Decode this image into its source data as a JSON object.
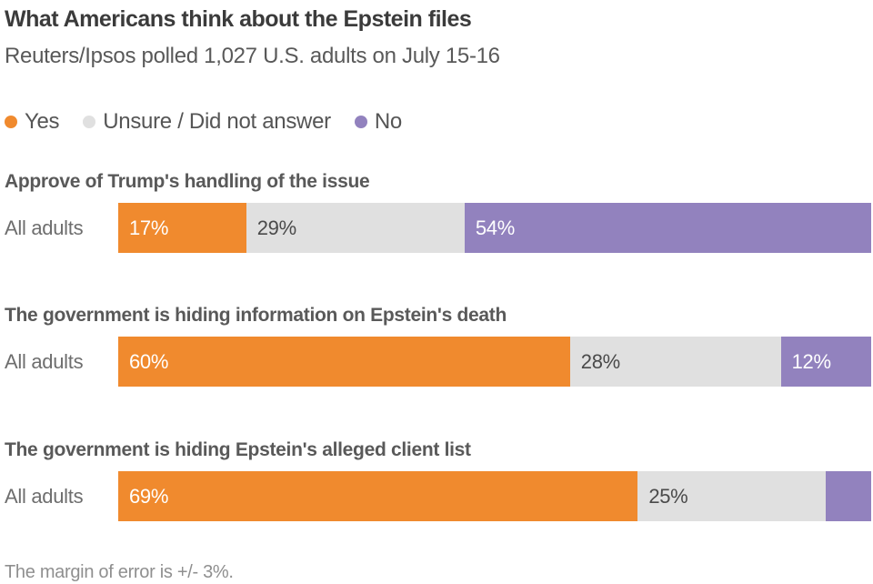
{
  "header": {
    "title": "What Americans think about the Epstein files",
    "subtitle": "Reuters/Ipsos polled 1,027 U.S. adults on July 15-16"
  },
  "legend": [
    {
      "label": "Yes",
      "color": "#F08A2E"
    },
    {
      "label": "Unsure / Did not answer",
      "color": "#E0E0E0"
    },
    {
      "label": "No",
      "color": "#9282BE"
    }
  ],
  "chart_data": {
    "type": "bar",
    "stacked": true,
    "orientation": "horizontal",
    "unit": "%",
    "series_names": [
      "Yes",
      "Unsure / Did not answer",
      "No"
    ],
    "colors": {
      "yes": "#F08A2E",
      "unsure": "#E0E0E0",
      "no": "#9282BE"
    },
    "xlim": [
      0,
      100
    ],
    "sections": [
      {
        "heading": "Approve of Trump's handling of the issue",
        "row_label": "All adults",
        "values": {
          "yes": 17,
          "unsure": 29,
          "no": 54
        },
        "labels": {
          "yes": "17%",
          "unsure": "29%",
          "no": "54%"
        }
      },
      {
        "heading": "The government is hiding information on Epstein's death",
        "row_label": "All adults",
        "values": {
          "yes": 60,
          "unsure": 28,
          "no": 12
        },
        "labels": {
          "yes": "60%",
          "unsure": "28%",
          "no": "12%"
        }
      },
      {
        "heading": "The government is hiding Epstein's alleged client list",
        "row_label": "All adults",
        "values": {
          "yes": 69,
          "unsure": 25,
          "no": 6
        },
        "labels": {
          "yes": "69%",
          "unsure": "25%",
          "no": ""
        }
      }
    ]
  },
  "footer": {
    "note": "The margin of error is +/- 3%."
  }
}
